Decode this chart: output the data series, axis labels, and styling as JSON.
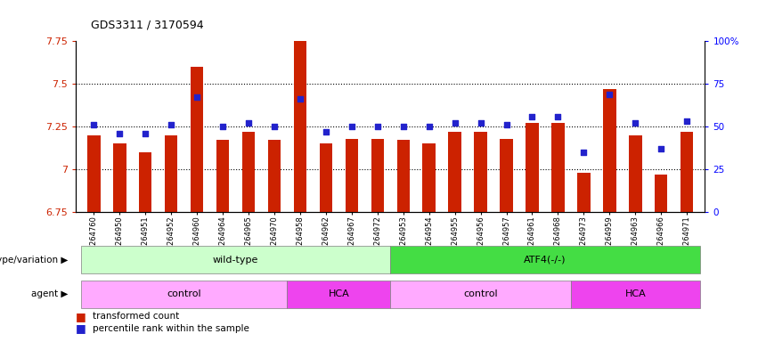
{
  "title": "GDS3311 / 3170594",
  "samples": [
    "GSM264760",
    "GSM264950",
    "GSM264951",
    "GSM264952",
    "GSM264960",
    "GSM264964",
    "GSM264965",
    "GSM264970",
    "GSM264958",
    "GSM264962",
    "GSM264967",
    "GSM264972",
    "GSM264953",
    "GSM264954",
    "GSM264955",
    "GSM264956",
    "GSM264957",
    "GSM264961",
    "GSM264968",
    "GSM264973",
    "GSM264959",
    "GSM264963",
    "GSM264966",
    "GSM264971"
  ],
  "bar_values": [
    7.2,
    7.15,
    7.1,
    7.2,
    7.6,
    7.17,
    7.22,
    7.17,
    7.76,
    7.15,
    7.18,
    7.18,
    7.17,
    7.15,
    7.22,
    7.22,
    7.18,
    7.27,
    7.27,
    6.98,
    7.47,
    7.2,
    6.97,
    7.22
  ],
  "percentile_values": [
    51,
    46,
    46,
    51,
    67,
    50,
    52,
    50,
    66,
    47,
    50,
    50,
    50,
    50,
    52,
    52,
    51,
    56,
    56,
    35,
    69,
    52,
    37,
    53
  ],
  "ymin": 6.75,
  "ymax": 7.75,
  "bar_color": "#cc2200",
  "dot_color": "#2222cc",
  "genotype_groups": [
    {
      "label": "wild-type",
      "start": 0,
      "end": 11,
      "color": "#ccffcc"
    },
    {
      "label": "ATF4(-/-)",
      "start": 12,
      "end": 23,
      "color": "#44dd44"
    }
  ],
  "agent_groups": [
    {
      "label": "control",
      "start": 0,
      "end": 7,
      "color": "#ffaaff"
    },
    {
      "label": "HCA",
      "start": 8,
      "end": 11,
      "color": "#ee44ee"
    },
    {
      "label": "control",
      "start": 12,
      "end": 18,
      "color": "#ffaaff"
    },
    {
      "label": "HCA",
      "start": 19,
      "end": 23,
      "color": "#ee44ee"
    }
  ]
}
